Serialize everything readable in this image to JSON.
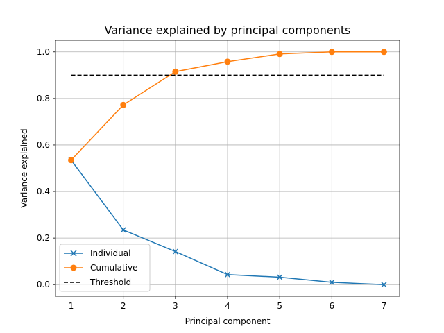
{
  "chart_data": {
    "type": "line",
    "title": "Variance explained by principal components",
    "xlabel": "Principal component",
    "ylabel": "Variance explained",
    "x": [
      1,
      2,
      3,
      4,
      5,
      6,
      7
    ],
    "xlim": [
      0.7,
      7.3
    ],
    "ylim": [
      -0.05,
      1.05
    ],
    "x_ticks": [
      1,
      2,
      3,
      4,
      5,
      6,
      7
    ],
    "y_ticks": [
      0.0,
      0.2,
      0.4,
      0.6,
      0.8,
      1.0
    ],
    "x_tick_labels": [
      "1",
      "2",
      "3",
      "4",
      "5",
      "6",
      "7"
    ],
    "y_tick_labels": [
      "0.0",
      "0.2",
      "0.4",
      "0.6",
      "0.8",
      "1.0"
    ],
    "grid": true,
    "legend_position": "lower-left",
    "series": [
      {
        "name": "Individual",
        "values": [
          0.535,
          0.235,
          0.142,
          0.043,
          0.032,
          0.01,
          0.0
        ],
        "color": "#1f77b4",
        "marker": "x",
        "line_style": "solid"
      },
      {
        "name": "Cumulative",
        "values": [
          0.535,
          0.772,
          0.915,
          0.958,
          0.991,
          1.0,
          1.0
        ],
        "color": "#ff7f0e",
        "marker": "o",
        "line_style": "solid"
      }
    ],
    "threshold": {
      "name": "Threshold",
      "value": 0.9,
      "x_range": [
        1,
        7
      ],
      "color": "#000000",
      "line_style": "dashed"
    },
    "grid_color": "#b0b0b0",
    "axes_color": "#000000"
  }
}
